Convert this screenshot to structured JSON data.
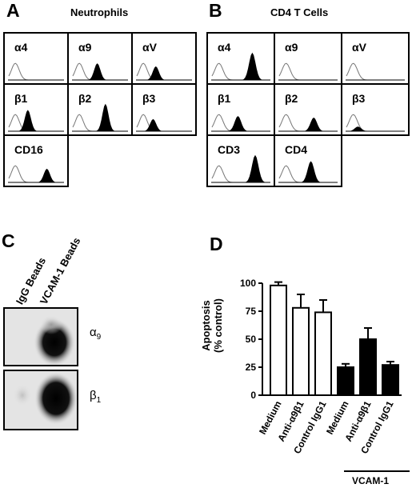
{
  "panel_a": {
    "letter": "A",
    "title": "Neutrophils",
    "rows": [
      [
        {
          "label": "α4",
          "peak": 0.25,
          "height": 0.0
        },
        {
          "label": "α9",
          "peak": 0.45,
          "height": 0.55
        },
        {
          "label": "αV",
          "peak": 0.35,
          "height": 0.45
        }
      ],
      [
        {
          "label": "β1",
          "peak": 0.35,
          "height": 0.7
        },
        {
          "label": "β2",
          "peak": 0.6,
          "height": 0.9
        },
        {
          "label": "β3",
          "peak": 0.3,
          "height": 0.4
        }
      ],
      [
        {
          "label": "CD16",
          "peak": 0.7,
          "height": 0.45
        }
      ]
    ]
  },
  "panel_b": {
    "letter": "B",
    "title": "CD4  T Cells",
    "rows": [
      [
        {
          "label": "α4",
          "peak": 0.7,
          "height": 0.9
        },
        {
          "label": "α9",
          "peak": 0.15,
          "height": 0.0
        },
        {
          "label": "αV",
          "peak": 0.15,
          "height": 0.0
        }
      ],
      [
        {
          "label": "β1",
          "peak": 0.45,
          "height": 0.5
        },
        {
          "label": "β2",
          "peak": 0.6,
          "height": 0.45
        },
        {
          "label": "β3",
          "peak": 0.2,
          "height": 0.15
        }
      ],
      [
        {
          "label": "CD3",
          "peak": 0.75,
          "height": 0.9
        },
        {
          "label": "CD4",
          "peak": 0.55,
          "height": 0.7
        }
      ]
    ]
  },
  "panel_c": {
    "letter": "C",
    "lanes": [
      "IgG Beads",
      "VCAM-1 Beads"
    ],
    "blots": [
      {
        "label_main": "α",
        "label_sub": "9"
      },
      {
        "label_main": "β",
        "label_sub": "1"
      }
    ]
  },
  "panel_d": {
    "letter": "D",
    "group_label": "VCAM-1",
    "chart_data": {
      "type": "bar",
      "categories": [
        "Medium",
        "Anti-α9β1",
        "Control IgG1",
        "Medium",
        "Anti-α9β1",
        "Control IgG1"
      ],
      "values": [
        98,
        78,
        74,
        25,
        50,
        27
      ],
      "errors": [
        3,
        12,
        11,
        3,
        10,
        3
      ],
      "fill": [
        "white",
        "white",
        "white",
        "black",
        "black",
        "black"
      ],
      "ylabel_line1": "Apoptosis",
      "ylabel_line2": "(% control)",
      "ylim": [
        0,
        100
      ],
      "yticks": [
        "0",
        "25",
        "50",
        "75",
        "100"
      ]
    }
  }
}
